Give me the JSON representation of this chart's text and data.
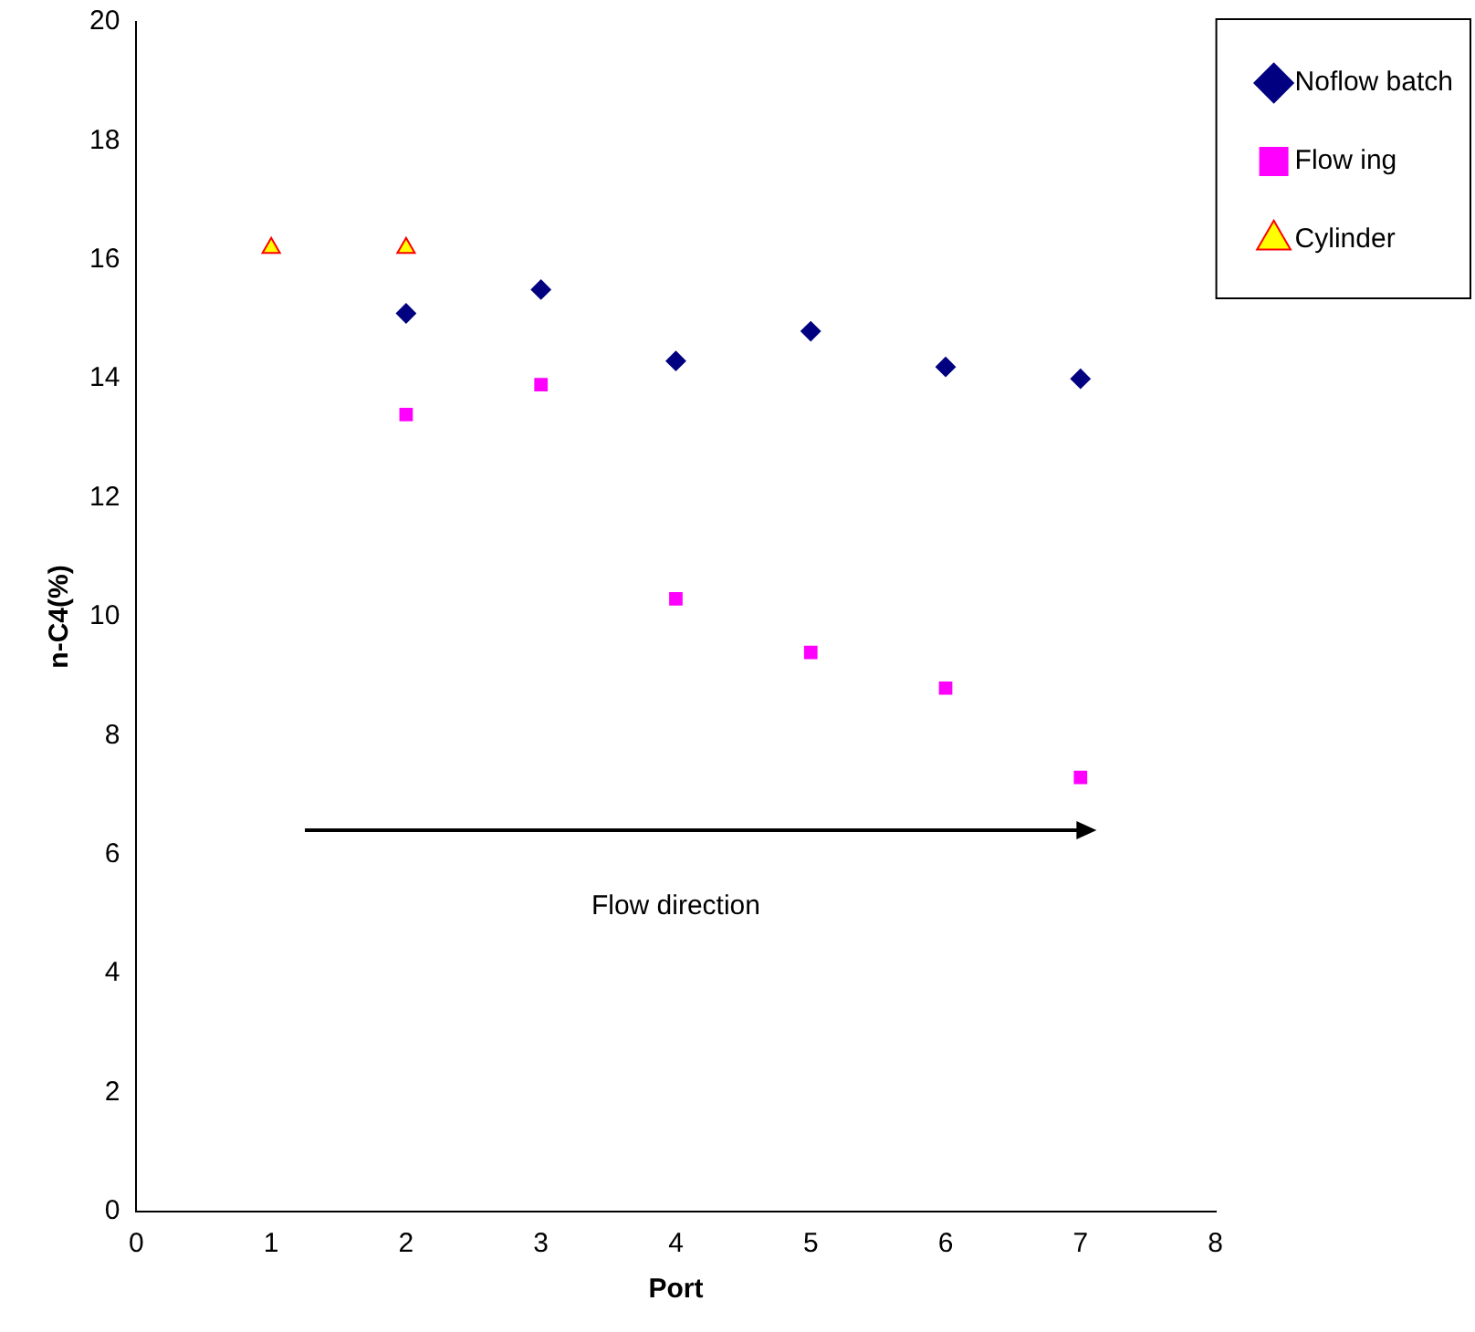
{
  "chart_data": {
    "type": "scatter",
    "xlabel": "Port",
    "ylabel": "n-C4(%)",
    "xlim": [
      0,
      8
    ],
    "xticks": [
      0,
      1,
      2,
      3,
      4,
      5,
      6,
      7,
      8
    ],
    "ylim": [
      0,
      20
    ],
    "yticks": [
      0,
      2,
      4,
      6,
      8,
      10,
      12,
      14,
      16,
      18,
      20
    ],
    "grid": false,
    "legend": "top right",
    "annotations": [
      "Flow direction"
    ],
    "series": [
      {
        "name": "Noflow batch",
        "color": "#000080",
        "marker": "diamond",
        "x": [
          2,
          3,
          4,
          5,
          6,
          7
        ],
        "values": [
          15.1,
          15.5,
          14.3,
          14.8,
          14.2,
          14.0
        ]
      },
      {
        "name": "Flow ing",
        "color": "#ff00ff",
        "marker": "square",
        "x": [
          2,
          3,
          4,
          5,
          6,
          7
        ],
        "values": [
          13.4,
          13.9,
          10.3,
          9.4,
          8.8,
          7.3
        ]
      },
      {
        "name": "Cylinder",
        "color": "#ffff00",
        "marker": "triangle",
        "x": [
          1,
          2
        ],
        "values": [
          16.2,
          16.2
        ]
      }
    ]
  }
}
